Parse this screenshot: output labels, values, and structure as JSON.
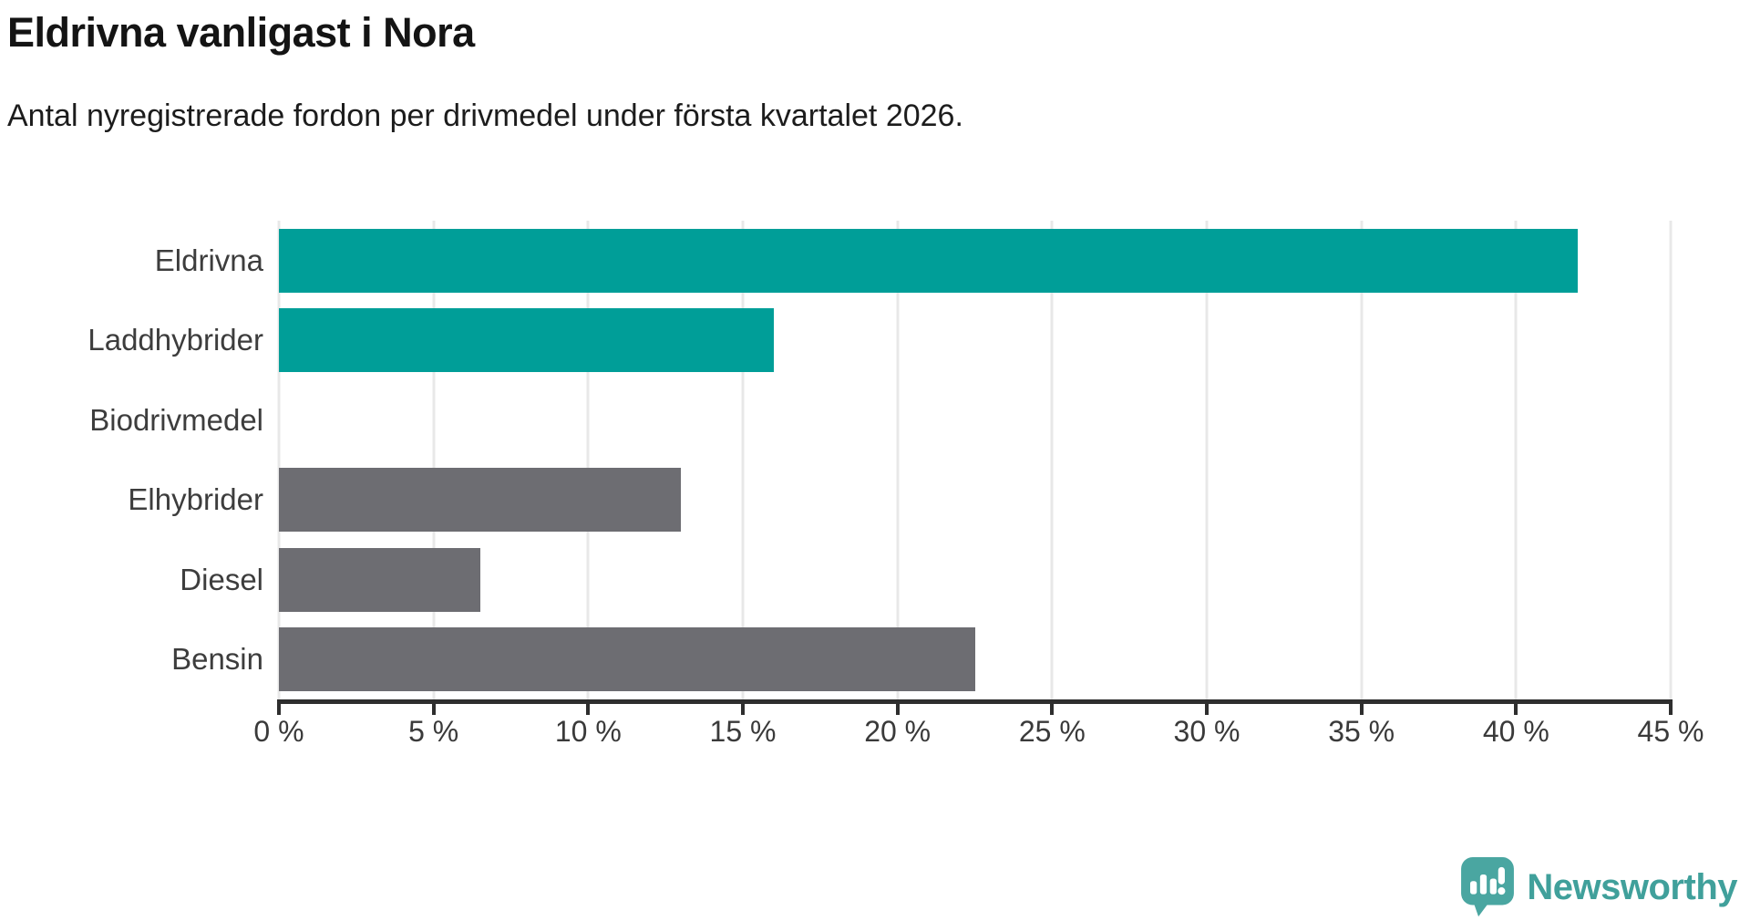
{
  "chart_data": {
    "type": "bar",
    "orientation": "horizontal",
    "title": "Eldrivna vanligast i Nora",
    "subtitle": "Antal nyregistrerade fordon per drivmedel under första kvartalet 2026.",
    "categories": [
      "Eldrivna",
      "Laddhybrider",
      "Biodrivmedel",
      "Elhybrider",
      "Diesel",
      "Bensin"
    ],
    "values": [
      42,
      16,
      0,
      13,
      6.5,
      22.5
    ],
    "unit": "%",
    "xlim": [
      0,
      45
    ],
    "tick_step": 5,
    "x_ticks": [
      "0 %",
      "5 %",
      "10 %",
      "15 %",
      "20 %",
      "25 %",
      "30 %",
      "35 %",
      "40 %",
      "45 %"
    ],
    "grid": true,
    "legend": "none",
    "bar_colors": [
      "#009e98",
      "#009e98",
      "#6d6d72",
      "#6d6d72",
      "#6d6d72",
      "#6d6d72"
    ],
    "highlight_color": "#009e98",
    "default_color": "#6d6d72"
  },
  "style": {
    "grid_color": "#e8e8e8",
    "axis_color": "#2e2e2e",
    "label_color": "#3d3d3d",
    "tick_label_color": "#3a3a3a"
  },
  "branding": {
    "wordmark": "Newsworthy",
    "logo_icon": "speech-bubble-bar-chart-icon",
    "brand_color": "#4aa6a1",
    "wordmark_color": "#40a09b"
  }
}
